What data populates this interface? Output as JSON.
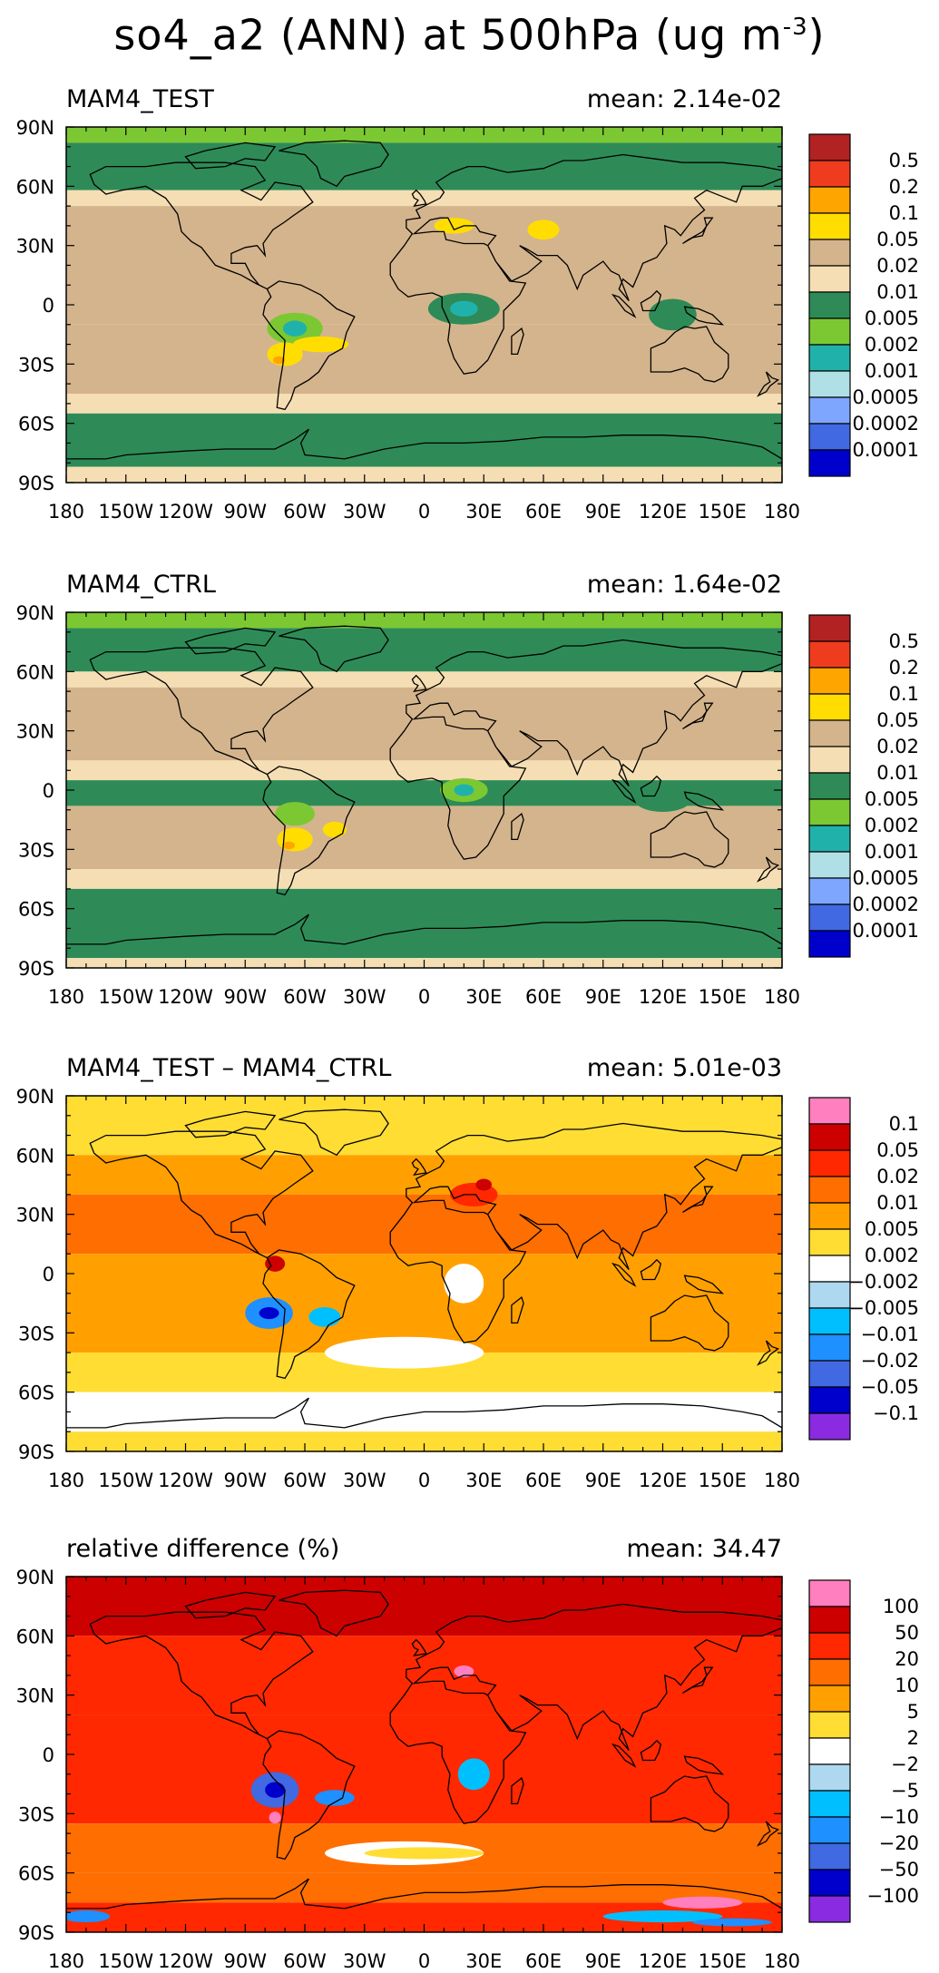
{
  "figure": {
    "title_main": "so4_a2 (ANN) at 500hPa (ug m",
    "title_exponent": "-3",
    "title_close": ")"
  },
  "axes": {
    "x_ticks": [
      "180",
      "150W",
      "120W",
      "90W",
      "60W",
      "30W",
      "0",
      "30E",
      "60E",
      "90E",
      "120E",
      "150E",
      "180"
    ],
    "y_ticks": [
      "90N",
      "60N",
      "30N",
      "0",
      "30S",
      "60S",
      "90S"
    ]
  },
  "chart_data": [
    {
      "type": "heatmap",
      "title": "MAM4_TEST",
      "mean_text": "mean: 2.14e-02",
      "xlim": [
        -180,
        180
      ],
      "ylim": [
        -90,
        90
      ],
      "legend_labels": [
        "0.5",
        "0.2",
        "0.1",
        "0.05",
        "0.02",
        "0.01",
        "0.005",
        "0.002",
        "0.001",
        "0.0005",
        "0.0002",
        "0.0001"
      ],
      "legend_colors": [
        "#b22222",
        "#f03c1e",
        "#ffa500",
        "#ffdd00",
        "#d4b48c",
        "#f5deb3",
        "#2e8b57",
        "#7cc832",
        "#20b2aa",
        "#b0e0e6",
        "#7fa6ff",
        "#4169e1",
        "#0000cd"
      ]
    },
    {
      "type": "heatmap",
      "title": "MAM4_CTRL",
      "mean_text": "mean: 1.64e-02",
      "xlim": [
        -180,
        180
      ],
      "ylim": [
        -90,
        90
      ],
      "legend_labels": [
        "0.5",
        "0.2",
        "0.1",
        "0.05",
        "0.02",
        "0.01",
        "0.005",
        "0.002",
        "0.001",
        "0.0005",
        "0.0002",
        "0.0001"
      ],
      "legend_colors": [
        "#b22222",
        "#f03c1e",
        "#ffa500",
        "#ffdd00",
        "#d4b48c",
        "#f5deb3",
        "#2e8b57",
        "#7cc832",
        "#20b2aa",
        "#b0e0e6",
        "#7fa6ff",
        "#4169e1",
        "#0000cd"
      ]
    },
    {
      "type": "heatmap",
      "title": "MAM4_TEST – MAM4_CTRL",
      "mean_text": "mean: 5.01e-03",
      "xlim": [
        -180,
        180
      ],
      "ylim": [
        -90,
        90
      ],
      "legend_labels": [
        "0.1",
        "0.05",
        "0.02",
        "0.01",
        "0.005",
        "0.002",
        "−0.002",
        "−0.005",
        "−0.01",
        "−0.02",
        "−0.05",
        "−0.1"
      ],
      "legend_colors": [
        "#ff7fbf",
        "#cd0000",
        "#ff2800",
        "#ff6e00",
        "#ffa000",
        "#ffdd33",
        "#ffffff",
        "#add8f0",
        "#00bfff",
        "#1e90ff",
        "#4169e1",
        "#0000cd",
        "#8a2be2"
      ]
    },
    {
      "type": "heatmap",
      "title": "relative difference (%)",
      "mean_text": "mean: 34.47",
      "xlim": [
        -180,
        180
      ],
      "ylim": [
        -90,
        90
      ],
      "legend_labels": [
        "100",
        "50",
        "20",
        "10",
        "5",
        "2",
        "−2",
        "−5",
        "−10",
        "−20",
        "−50",
        "−100"
      ],
      "legend_colors": [
        "#ff7fbf",
        "#cd0000",
        "#ff2800",
        "#ff6e00",
        "#ffa000",
        "#ffdd33",
        "#ffffff",
        "#add8f0",
        "#00bfff",
        "#1e90ff",
        "#4169e1",
        "#0000cd",
        "#8a2be2"
      ]
    }
  ]
}
